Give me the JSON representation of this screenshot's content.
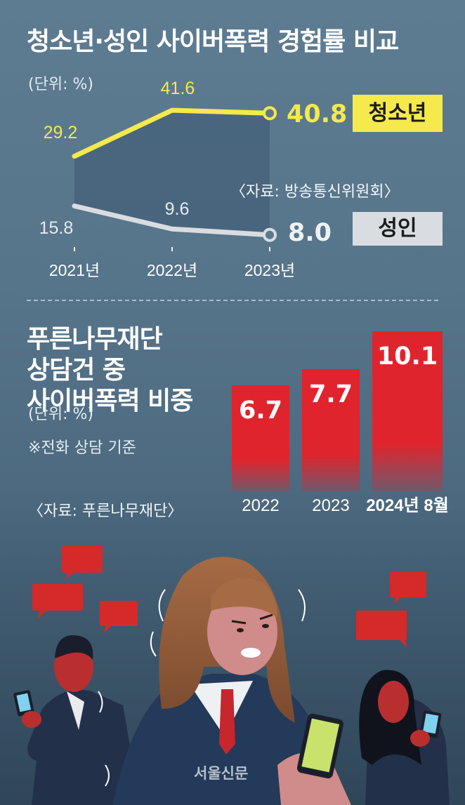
{
  "chart_data": [
    {
      "type": "line",
      "title": "청소년·성인 사이버폭력 경험률 비교",
      "unit": "(단위: %)",
      "source": "〈자료: 방송통신위원회〉",
      "categories": [
        "2021년",
        "2022년",
        "2023년"
      ],
      "ylim": [
        0,
        45
      ],
      "series": [
        {
          "name": "청소년",
          "values": [
            29.2,
            41.6,
            40.8
          ],
          "labels": [
            "29.2",
            "41.6",
            "40.8"
          ],
          "color": "#f5e94b"
        },
        {
          "name": "성인",
          "values": [
            15.8,
            9.6,
            8.0
          ],
          "labels": [
            "15.8",
            "9.6",
            "8.0"
          ],
          "color": "#d9dde1"
        }
      ],
      "grid": false,
      "legend": "right"
    },
    {
      "type": "bar",
      "title": "푸른나무재단 상담건 중 사이버폭력 비중",
      "unit": "(단위: %)",
      "note": "※전화 상담 기준",
      "source": "〈자료: 푸른나무재단〉",
      "categories": [
        "2022",
        "2023",
        "2024년 8월"
      ],
      "values": [
        6.7,
        7.7,
        10.1
      ],
      "labels": [
        "6.7",
        "7.7",
        "10.1"
      ],
      "color": "#e0242d",
      "ylim": [
        0,
        10.1
      ],
      "grid": false
    }
  ],
  "colors": {
    "yellow": "#f5e94b",
    "gray": "#d9dde1",
    "red": "#e0242d"
  },
  "watermark": "서울신문"
}
